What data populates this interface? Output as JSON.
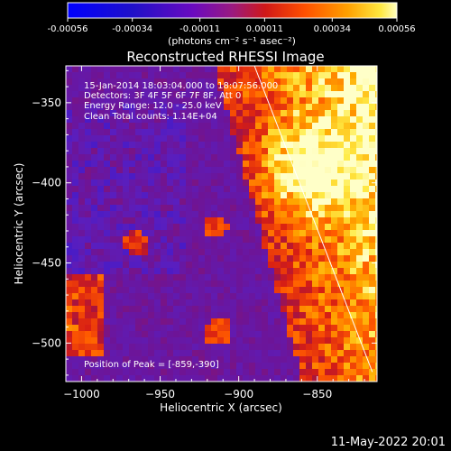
{
  "colorbar": {
    "tick_labels": [
      "-0.00056",
      "-0.00034",
      "-0.00011",
      "0.00011",
      "0.00034",
      "0.00056"
    ],
    "tick_values": [
      -0.00056,
      -0.00034,
      -0.00011,
      0.00011,
      0.00034,
      0.00056
    ],
    "units_label": "(photons cm⁻² s⁻¹ asec⁻²)",
    "range": [
      -0.00056,
      0.00056
    ]
  },
  "chart_data": {
    "type": "heatmap",
    "title": "Reconstructed RHESSI Image",
    "xlabel": "Heliocentric X (arcsec)",
    "ylabel": "Heliocentric Y (arcsec)",
    "xlim": [
      -1010,
      -812
    ],
    "ylim": [
      -524,
      -327
    ],
    "x_ticks": [
      -1000,
      -950,
      -900,
      -850
    ],
    "x_tick_labels": [
      "−1000",
      "−950",
      "−900",
      "−850"
    ],
    "y_ticks": [
      -500,
      -450,
      -400,
      -350
    ],
    "y_tick_labels": [
      "−500",
      "−450",
      "−400",
      "−350"
    ],
    "annotations": [
      "15-Jan-2014 18:03:04.000 to 18:07:56.000",
      "Detectors: 3F 4F 5F 6F 7F 8F, Att 0",
      "Energy Range: 12.0 - 25.0 keV",
      "Clean     Total counts: 1.14E+04"
    ],
    "peak_label": "Position of Peak = [-859,-390]",
    "peak_position": [
      -859,
      -390
    ],
    "limb_line": {
      "from": [
        -890,
        -327
      ],
      "to": [
        -815,
        -518
      ]
    }
  },
  "footer": {
    "date": "11-May-2022 20:01"
  }
}
